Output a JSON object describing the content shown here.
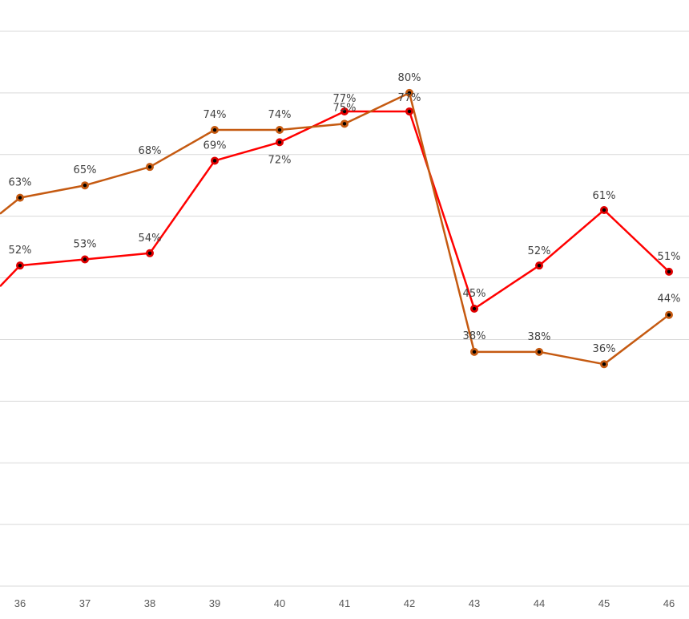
{
  "chart_data": {
    "type": "line",
    "title": "",
    "xlabel": "",
    "ylabel": "",
    "x": [
      "36",
      "37",
      "38",
      "39",
      "40",
      "41",
      "42",
      "43",
      "44",
      "45",
      "46"
    ],
    "ylim": [
      0,
      90
    ],
    "grid": true,
    "series": [
      {
        "color": "#ff0000",
        "marker_color": "#e00000",
        "values": [
          52,
          53,
          54,
          69,
          72,
          77,
          77,
          45,
          52,
          61,
          51
        ],
        "labels": [
          "52%",
          "53%",
          "54%",
          "69%",
          "72%",
          "77%",
          "77%",
          "45%",
          "52%",
          "61%",
          "51%"
        ]
      },
      {
        "color": "#c55a11",
        "marker_color": "#c55a11",
        "values": [
          63,
          65,
          68,
          74,
          74,
          75,
          80,
          38,
          38,
          36,
          44
        ],
        "labels": [
          "63%",
          "65%",
          "68%",
          "74%",
          "74%",
          "75%",
          "80%",
          "38%",
          "38%",
          "36%",
          "44%"
        ]
      }
    ]
  }
}
